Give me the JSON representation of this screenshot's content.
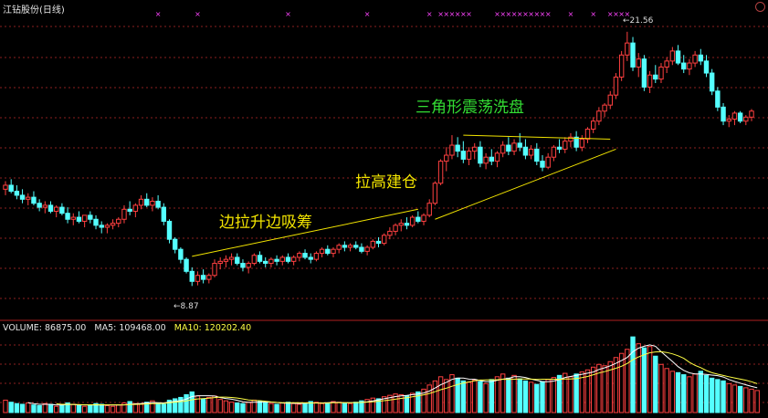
{
  "window": {
    "title": "江钻股份(日线)"
  },
  "volume_header": {
    "volume_label": "VOLUME: 86875.00",
    "ma5_label": "MA5: 109468.00",
    "ma10_label": "MA10: 120202.40"
  },
  "annotations": {
    "stage1": "边拉升边吸筹",
    "stage2": "拉高建仓",
    "stage3": "三角形震荡洗盘"
  },
  "price_labels": {
    "low": "←8.87",
    "high": "←21.56"
  },
  "colors": {
    "up": "#ff4040",
    "down": "#54ffff",
    "ma5": "#ffffff",
    "ma10": "#ffff44",
    "trendline": "#f2e400",
    "marker": "#ff44ff",
    "grid": "#8b1f1f"
  },
  "chart_data": {
    "type": "candlestick",
    "title": "江钻股份(日线)",
    "price_low": 8.87,
    "price_high": 21.56,
    "candles": [
      [
        13.7,
        14.1,
        13.4,
        13.9
      ],
      [
        13.9,
        14.2,
        13.5,
        13.6
      ],
      [
        13.6,
        13.9,
        13.2,
        13.4
      ],
      [
        13.4,
        13.7,
        13.0,
        13.2
      ],
      [
        13.2,
        13.5,
        12.9,
        13.3
      ],
      [
        13.3,
        13.6,
        12.9,
        13.0
      ],
      [
        13.0,
        13.2,
        12.6,
        12.8
      ],
      [
        12.8,
        13.1,
        12.5,
        12.9
      ],
      [
        12.9,
        13.1,
        12.5,
        12.6
      ],
      [
        12.6,
        12.9,
        12.3,
        12.8
      ],
      [
        12.8,
        13.0,
        12.4,
        12.5
      ],
      [
        12.5,
        12.8,
        12.0,
        12.2
      ],
      [
        12.2,
        12.5,
        11.9,
        12.3
      ],
      [
        12.3,
        12.6,
        12.0,
        12.1
      ],
      [
        12.1,
        12.4,
        11.8,
        12.4
      ],
      [
        12.4,
        12.6,
        12.0,
        12.2
      ],
      [
        12.2,
        12.4,
        11.7,
        11.9
      ],
      [
        11.9,
        12.1,
        11.5,
        11.8
      ],
      [
        11.8,
        12.0,
        11.5,
        11.9
      ],
      [
        11.9,
        12.2,
        11.7,
        12.0
      ],
      [
        12.0,
        12.3,
        11.8,
        12.2
      ],
      [
        12.2,
        12.9,
        12.0,
        12.7
      ],
      [
        12.7,
        13.1,
        12.4,
        12.6
      ],
      [
        12.6,
        13.0,
        12.3,
        12.9
      ],
      [
        12.9,
        13.4,
        12.7,
        13.2
      ],
      [
        13.2,
        13.5,
        12.8,
        12.9
      ],
      [
        12.9,
        13.3,
        12.6,
        13.1
      ],
      [
        13.1,
        13.4,
        12.7,
        12.8
      ],
      [
        12.8,
        13.0,
        11.9,
        12.1
      ],
      [
        12.1,
        12.2,
        11.0,
        11.2
      ],
      [
        11.2,
        11.3,
        10.5,
        10.7
      ],
      [
        10.7,
        10.8,
        10.0,
        10.2
      ],
      [
        10.2,
        10.3,
        9.5,
        9.6
      ],
      [
        9.6,
        9.8,
        8.87,
        9.1
      ],
      [
        9.1,
        9.6,
        8.9,
        9.4
      ],
      [
        9.4,
        9.7,
        9.0,
        9.2
      ],
      [
        9.2,
        9.5,
        9.0,
        9.4
      ],
      [
        9.4,
        10.2,
        9.3,
        10.0
      ],
      [
        10.0,
        10.3,
        9.7,
        10.1
      ],
      [
        10.1,
        10.4,
        9.8,
        10.2
      ],
      [
        10.2,
        10.5,
        9.9,
        10.3
      ],
      [
        10.3,
        10.5,
        9.9,
        10.0
      ],
      [
        10.0,
        10.2,
        9.6,
        9.8
      ],
      [
        9.8,
        10.1,
        9.5,
        10.0
      ],
      [
        10.0,
        10.5,
        9.9,
        10.4
      ],
      [
        10.4,
        10.6,
        10.0,
        10.1
      ],
      [
        10.1,
        10.3,
        9.8,
        10.0
      ],
      [
        10.0,
        10.3,
        9.8,
        10.2
      ],
      [
        10.2,
        10.4,
        9.9,
        10.1
      ],
      [
        10.1,
        10.4,
        9.9,
        10.3
      ],
      [
        10.3,
        10.5,
        10.0,
        10.1
      ],
      [
        10.1,
        10.4,
        9.9,
        10.3
      ],
      [
        10.3,
        10.6,
        10.1,
        10.5
      ],
      [
        10.5,
        10.7,
        10.2,
        10.3
      ],
      [
        10.3,
        10.5,
        10.0,
        10.2
      ],
      [
        10.2,
        10.6,
        10.1,
        10.5
      ],
      [
        10.5,
        10.8,
        10.3,
        10.7
      ],
      [
        10.7,
        10.9,
        10.4,
        10.5
      ],
      [
        10.5,
        10.8,
        10.3,
        10.7
      ],
      [
        10.7,
        11.0,
        10.5,
        10.9
      ],
      [
        10.9,
        11.1,
        10.6,
        10.8
      ],
      [
        10.8,
        11.0,
        10.6,
        10.9
      ],
      [
        10.9,
        11.1,
        10.7,
        10.8
      ],
      [
        10.8,
        11.0,
        10.5,
        10.6
      ],
      [
        10.6,
        10.9,
        10.4,
        10.8
      ],
      [
        10.8,
        11.2,
        10.7,
        11.1
      ],
      [
        11.1,
        11.3,
        10.8,
        11.0
      ],
      [
        11.0,
        11.5,
        10.9,
        11.4
      ],
      [
        11.4,
        11.8,
        11.2,
        11.6
      ],
      [
        11.6,
        12.0,
        11.4,
        11.9
      ],
      [
        11.9,
        12.2,
        11.6,
        12.0
      ],
      [
        12.0,
        12.3,
        11.7,
        11.9
      ],
      [
        11.9,
        12.4,
        11.8,
        12.3
      ],
      [
        12.3,
        12.6,
        12.0,
        12.1
      ],
      [
        12.1,
        12.5,
        11.9,
        12.4
      ],
      [
        12.4,
        13.2,
        12.3,
        13.0
      ],
      [
        13.0,
        14.1,
        12.9,
        14.0
      ],
      [
        14.0,
        15.2,
        13.9,
        15.1
      ],
      [
        15.1,
        15.8,
        14.6,
        15.4
      ],
      [
        15.4,
        16.4,
        15.2,
        15.9
      ],
      [
        15.9,
        16.3,
        15.3,
        15.6
      ],
      [
        15.6,
        16.1,
        15.0,
        15.2
      ],
      [
        15.2,
        15.8,
        14.9,
        15.6
      ],
      [
        15.6,
        16.0,
        15.2,
        15.8
      ],
      [
        15.8,
        16.1,
        14.8,
        15.0
      ],
      [
        15.0,
        15.5,
        14.7,
        15.3
      ],
      [
        15.3,
        15.7,
        14.9,
        15.1
      ],
      [
        15.1,
        15.6,
        14.8,
        15.5
      ],
      [
        15.5,
        16.1,
        15.3,
        15.9
      ],
      [
        15.9,
        16.3,
        15.4,
        15.6
      ],
      [
        15.6,
        16.2,
        15.4,
        16.0
      ],
      [
        16.0,
        16.5,
        15.6,
        15.8
      ],
      [
        15.8,
        16.2,
        15.2,
        15.4
      ],
      [
        15.4,
        15.9,
        15.2,
        15.7
      ],
      [
        15.7,
        16.0,
        14.9,
        15.1
      ],
      [
        15.1,
        15.4,
        14.6,
        14.8
      ],
      [
        14.8,
        15.5,
        14.7,
        15.3
      ],
      [
        15.3,
        15.9,
        15.1,
        15.8
      ],
      [
        15.8,
        16.2,
        15.5,
        15.7
      ],
      [
        15.7,
        16.3,
        15.5,
        16.1
      ],
      [
        16.1,
        16.5,
        15.8,
        16.3
      ],
      [
        16.3,
        16.6,
        15.6,
        15.8
      ],
      [
        15.8,
        16.4,
        15.6,
        16.2
      ],
      [
        16.2,
        16.8,
        16.0,
        16.7
      ],
      [
        16.7,
        17.3,
        16.5,
        17.1
      ],
      [
        17.1,
        17.8,
        16.9,
        17.6
      ],
      [
        17.6,
        18.0,
        17.3,
        17.9
      ],
      [
        17.9,
        18.6,
        17.7,
        18.4
      ],
      [
        18.4,
        19.5,
        18.2,
        19.3
      ],
      [
        19.3,
        20.6,
        19.1,
        20.4
      ],
      [
        20.4,
        21.56,
        20.1,
        21.0
      ],
      [
        21.0,
        21.3,
        19.6,
        19.8
      ],
      [
        19.8,
        20.5,
        19.3,
        20.2
      ],
      [
        20.2,
        20.4,
        18.6,
        18.8
      ],
      [
        18.8,
        19.6,
        18.5,
        19.4
      ],
      [
        19.4,
        19.9,
        19.0,
        19.2
      ],
      [
        19.2,
        20.0,
        19.0,
        19.8
      ],
      [
        19.8,
        20.3,
        19.5,
        20.1
      ],
      [
        20.1,
        20.8,
        19.9,
        20.6
      ],
      [
        20.6,
        20.9,
        19.9,
        20.0
      ],
      [
        20.0,
        20.4,
        19.5,
        19.7
      ],
      [
        19.7,
        20.2,
        19.4,
        20.0
      ],
      [
        20.0,
        20.6,
        19.8,
        20.4
      ],
      [
        20.4,
        20.7,
        19.9,
        20.1
      ],
      [
        20.1,
        20.4,
        19.3,
        19.5
      ],
      [
        19.5,
        19.7,
        18.4,
        18.6
      ],
      [
        18.6,
        18.8,
        17.6,
        17.8
      ],
      [
        17.8,
        18.0,
        16.9,
        17.1
      ],
      [
        17.1,
        17.4,
        16.8,
        17.2
      ],
      [
        17.2,
        17.6,
        16.9,
        17.5
      ],
      [
        17.5,
        17.6,
        17.0,
        17.1
      ],
      [
        17.1,
        17.4,
        16.9,
        17.3
      ],
      [
        17.3,
        17.7,
        17.1,
        17.6
      ]
    ],
    "volume": [
      18,
      15,
      13,
      12,
      14,
      11,
      10,
      13,
      12,
      9,
      11,
      14,
      12,
      10,
      9,
      11,
      13,
      12,
      10,
      9,
      11,
      14,
      16,
      13,
      12,
      15,
      17,
      14,
      12,
      18,
      20,
      22,
      26,
      30,
      24,
      20,
      22,
      24,
      19,
      17,
      15,
      14,
      13,
      15,
      18,
      16,
      14,
      13,
      12,
      14,
      15,
      13,
      12,
      14,
      16,
      15,
      13,
      14,
      16,
      15,
      14,
      13,
      15,
      17,
      19,
      21,
      20,
      23,
      25,
      27,
      26,
      24,
      28,
      30,
      34,
      40,
      46,
      52,
      48,
      55,
      50,
      46,
      44,
      47,
      45,
      42,
      48,
      52,
      56,
      50,
      54,
      49,
      46,
      44,
      41,
      45,
      48,
      51,
      54,
      57,
      52,
      56,
      59,
      62,
      66,
      70,
      68,
      74,
      80,
      86,
      92,
      110,
      100,
      94,
      96,
      82,
      70,
      64,
      60,
      58,
      55,
      52,
      56,
      60,
      54,
      50,
      48,
      46,
      42,
      40,
      38,
      36,
      34,
      32
    ],
    "markers_at": [
      27,
      34,
      50,
      64,
      75,
      77,
      78,
      79,
      80,
      81,
      82,
      87,
      88,
      89,
      90,
      91,
      92,
      93,
      94,
      95,
      96,
      100,
      104,
      107,
      108,
      109,
      110
    ]
  }
}
